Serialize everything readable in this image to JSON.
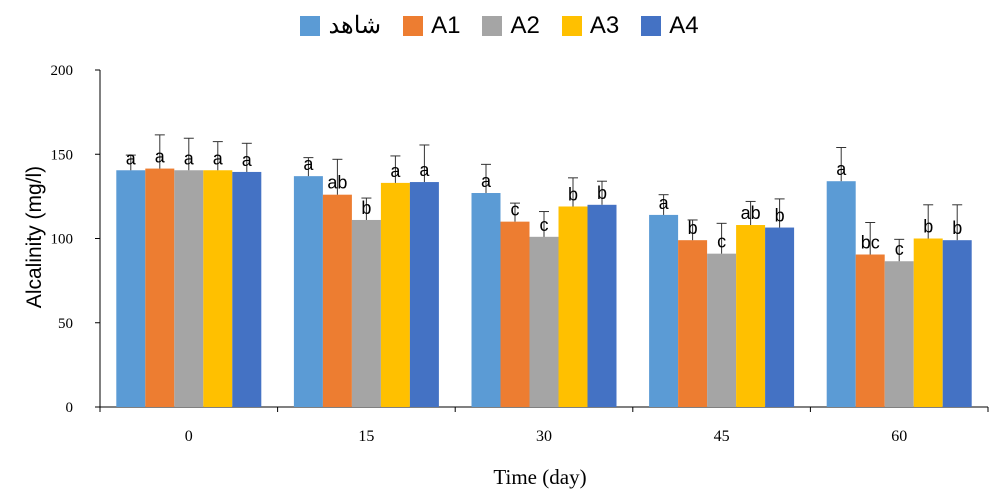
{
  "chart_data": {
    "type": "bar",
    "xlabel": "Time (day)",
    "ylabel": "Alcalinity (mg/l)",
    "ylim": [
      0,
      200
    ],
    "yticks": [
      0,
      50,
      100,
      150,
      200
    ],
    "categories": [
      "0",
      "15",
      "30",
      "45",
      "60"
    ],
    "legend_position": "top",
    "series": [
      {
        "name": "شاهد",
        "color": "#5b9bd5",
        "values": [
          140.5,
          137,
          127,
          114,
          134
        ],
        "errors": [
          9,
          11,
          17,
          12,
          20
        ],
        "labels": [
          "a",
          "a",
          "a",
          "a",
          "a"
        ]
      },
      {
        "name": "A1",
        "color": "#ed7d31",
        "values": [
          141.5,
          126,
          110,
          99,
          90.5
        ],
        "errors": [
          20,
          21,
          11,
          12,
          19
        ],
        "labels": [
          "a",
          "ab",
          "c",
          "b",
          "bc"
        ]
      },
      {
        "name": "A2",
        "color": "#a5a5a5",
        "values": [
          140.5,
          111,
          101,
          91,
          86.5
        ],
        "errors": [
          19,
          13,
          15,
          18,
          13
        ],
        "labels": [
          "a",
          "b",
          "c",
          "c",
          "c"
        ]
      },
      {
        "name": "A3",
        "color": "#ffc000",
        "values": [
          140.5,
          133,
          119,
          108,
          100
        ],
        "errors": [
          17,
          16,
          17,
          14,
          20
        ],
        "labels": [
          "a",
          "a",
          "b",
          "ab",
          "b"
        ]
      },
      {
        "name": "A4",
        "color": "#4472c4",
        "values": [
          139.5,
          133.5,
          120,
          106.5,
          99
        ],
        "errors": [
          17,
          22,
          14,
          17,
          21
        ],
        "labels": [
          "a",
          "a",
          "b",
          "b",
          "b"
        ]
      }
    ]
  }
}
